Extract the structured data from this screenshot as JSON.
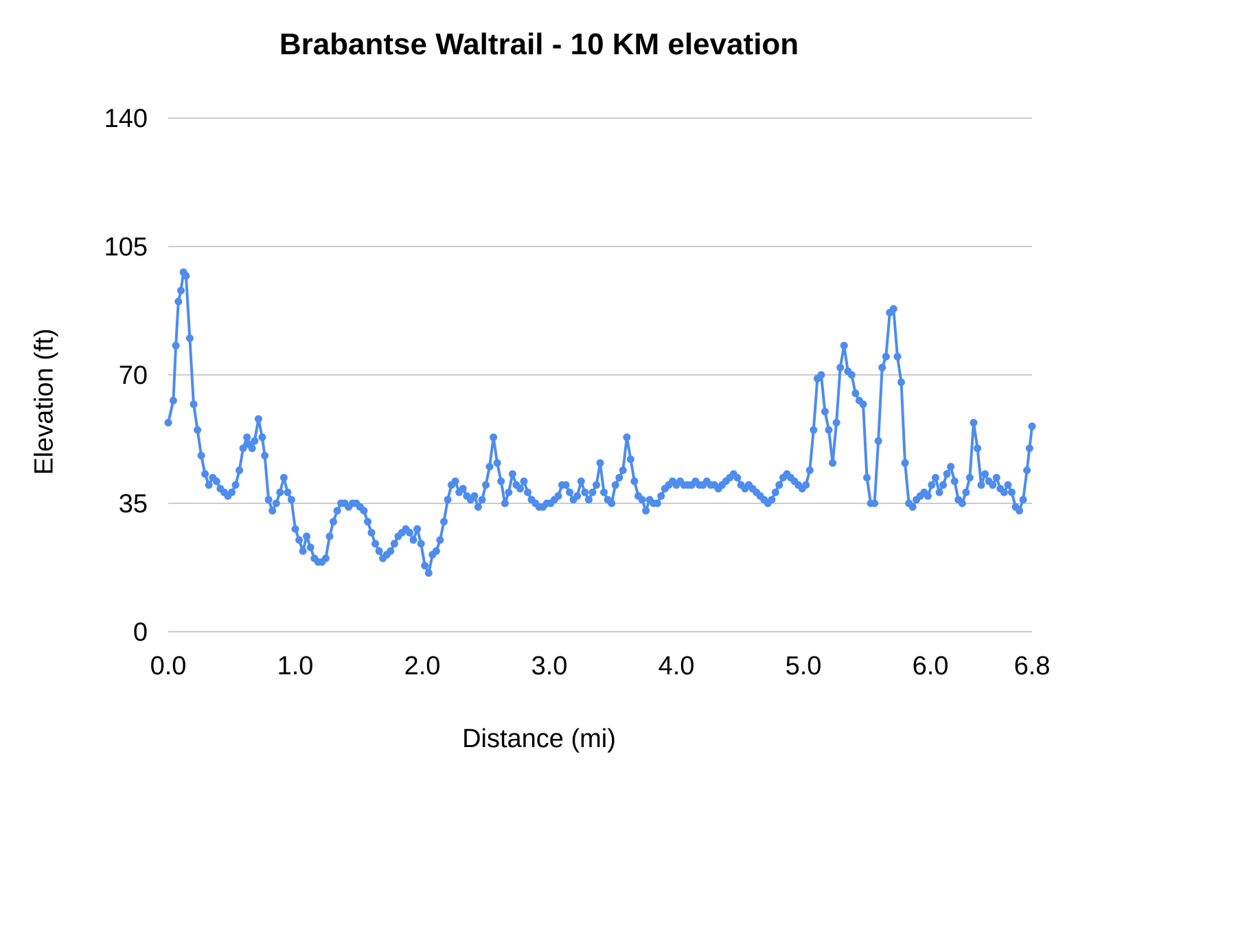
{
  "chart": {
    "title": "Brabantse Waltrail - 10 KM elevation",
    "xlabel": "Distance (mi)",
    "ylabel": "Elevation (ft)"
  },
  "chart_data": {
    "type": "line",
    "title": "Brabantse Waltrail - 10 KM elevation",
    "xlabel": "Distance (mi)",
    "ylabel": "Elevation (ft)",
    "xlim": [
      0,
      6.8
    ],
    "ylim": [
      0,
      140
    ],
    "x_ticks": [
      0,
      1,
      2,
      3,
      4,
      5,
      6,
      6.8
    ],
    "x_tick_labels": [
      "0.0",
      "1.0",
      "2.0",
      "3.0",
      "4.0",
      "5.0",
      "6.0",
      "6.8"
    ],
    "y_ticks": [
      0,
      35,
      70,
      105,
      140
    ],
    "grid": true,
    "legend": "none",
    "line_color": "#4e8ced",
    "grid_color": "#cccccc",
    "text_color": "#000000",
    "marker": "circle",
    "points": [
      [
        0.0,
        57
      ],
      [
        0.04,
        63
      ],
      [
        0.06,
        78
      ],
      [
        0.08,
        90
      ],
      [
        0.1,
        93
      ],
      [
        0.12,
        98
      ],
      [
        0.14,
        97
      ],
      [
        0.17,
        80
      ],
      [
        0.2,
        62
      ],
      [
        0.23,
        55
      ],
      [
        0.26,
        48
      ],
      [
        0.29,
        43
      ],
      [
        0.32,
        40
      ],
      [
        0.35,
        42
      ],
      [
        0.38,
        41
      ],
      [
        0.41,
        39
      ],
      [
        0.44,
        38
      ],
      [
        0.47,
        37
      ],
      [
        0.5,
        38
      ],
      [
        0.53,
        40
      ],
      [
        0.56,
        44
      ],
      [
        0.59,
        50
      ],
      [
        0.62,
        53
      ],
      [
        0.64,
        51
      ],
      [
        0.66,
        50
      ],
      [
        0.68,
        52
      ],
      [
        0.71,
        58
      ],
      [
        0.74,
        53
      ],
      [
        0.76,
        48
      ],
      [
        0.79,
        36
      ],
      [
        0.82,
        33
      ],
      [
        0.85,
        35
      ],
      [
        0.88,
        38
      ],
      [
        0.91,
        42
      ],
      [
        0.94,
        38
      ],
      [
        0.97,
        36
      ],
      [
        1.0,
        28
      ],
      [
        1.03,
        25
      ],
      [
        1.06,
        22
      ],
      [
        1.09,
        26
      ],
      [
        1.12,
        23
      ],
      [
        1.15,
        20
      ],
      [
        1.18,
        19
      ],
      [
        1.21,
        19
      ],
      [
        1.24,
        20
      ],
      [
        1.27,
        26
      ],
      [
        1.3,
        30
      ],
      [
        1.33,
        33
      ],
      [
        1.36,
        35
      ],
      [
        1.39,
        35
      ],
      [
        1.42,
        34
      ],
      [
        1.45,
        35
      ],
      [
        1.48,
        35
      ],
      [
        1.51,
        34
      ],
      [
        1.54,
        33
      ],
      [
        1.57,
        30
      ],
      [
        1.6,
        27
      ],
      [
        1.63,
        24
      ],
      [
        1.66,
        22
      ],
      [
        1.69,
        20
      ],
      [
        1.72,
        21
      ],
      [
        1.75,
        22
      ],
      [
        1.78,
        24
      ],
      [
        1.81,
        26
      ],
      [
        1.84,
        27
      ],
      [
        1.87,
        28
      ],
      [
        1.9,
        27
      ],
      [
        1.93,
        25
      ],
      [
        1.96,
        28
      ],
      [
        1.99,
        24
      ],
      [
        2.02,
        18
      ],
      [
        2.05,
        16
      ],
      [
        2.08,
        21
      ],
      [
        2.11,
        22
      ],
      [
        2.14,
        25
      ],
      [
        2.17,
        30
      ],
      [
        2.2,
        36
      ],
      [
        2.23,
        40
      ],
      [
        2.26,
        41
      ],
      [
        2.29,
        38
      ],
      [
        2.32,
        39
      ],
      [
        2.35,
        37
      ],
      [
        2.38,
        36
      ],
      [
        2.41,
        37
      ],
      [
        2.44,
        34
      ],
      [
        2.47,
        36
      ],
      [
        2.5,
        40
      ],
      [
        2.53,
        45
      ],
      [
        2.56,
        53
      ],
      [
        2.59,
        46
      ],
      [
        2.62,
        41
      ],
      [
        2.65,
        35
      ],
      [
        2.68,
        38
      ],
      [
        2.71,
        43
      ],
      [
        2.74,
        40
      ],
      [
        2.77,
        39
      ],
      [
        2.8,
        41
      ],
      [
        2.83,
        38
      ],
      [
        2.86,
        36
      ],
      [
        2.89,
        35
      ],
      [
        2.92,
        34
      ],
      [
        2.95,
        34
      ],
      [
        2.98,
        35
      ],
      [
        3.01,
        35
      ],
      [
        3.04,
        36
      ],
      [
        3.07,
        37
      ],
      [
        3.1,
        40
      ],
      [
        3.13,
        40
      ],
      [
        3.16,
        38
      ],
      [
        3.19,
        36
      ],
      [
        3.22,
        37
      ],
      [
        3.25,
        41
      ],
      [
        3.28,
        38
      ],
      [
        3.31,
        36
      ],
      [
        3.34,
        38
      ],
      [
        3.37,
        40
      ],
      [
        3.4,
        46
      ],
      [
        3.43,
        38
      ],
      [
        3.46,
        36
      ],
      [
        3.49,
        35
      ],
      [
        3.52,
        40
      ],
      [
        3.55,
        42
      ],
      [
        3.58,
        44
      ],
      [
        3.61,
        53
      ],
      [
        3.64,
        47
      ],
      [
        3.67,
        41
      ],
      [
        3.7,
        37
      ],
      [
        3.73,
        36
      ],
      [
        3.76,
        33
      ],
      [
        3.79,
        36
      ],
      [
        3.82,
        35
      ],
      [
        3.85,
        35
      ],
      [
        3.88,
        37
      ],
      [
        3.91,
        39
      ],
      [
        3.94,
        40
      ],
      [
        3.97,
        41
      ],
      [
        4.0,
        40
      ],
      [
        4.03,
        41
      ],
      [
        4.06,
        40
      ],
      [
        4.09,
        40
      ],
      [
        4.12,
        40
      ],
      [
        4.15,
        41
      ],
      [
        4.18,
        40
      ],
      [
        4.21,
        40
      ],
      [
        4.24,
        41
      ],
      [
        4.27,
        40
      ],
      [
        4.3,
        40
      ],
      [
        4.33,
        39
      ],
      [
        4.36,
        40
      ],
      [
        4.39,
        41
      ],
      [
        4.42,
        42
      ],
      [
        4.45,
        43
      ],
      [
        4.48,
        42
      ],
      [
        4.51,
        40
      ],
      [
        4.54,
        39
      ],
      [
        4.57,
        40
      ],
      [
        4.6,
        39
      ],
      [
        4.63,
        38
      ],
      [
        4.66,
        37
      ],
      [
        4.69,
        36
      ],
      [
        4.72,
        35
      ],
      [
        4.75,
        36
      ],
      [
        4.78,
        38
      ],
      [
        4.81,
        40
      ],
      [
        4.84,
        42
      ],
      [
        4.87,
        43
      ],
      [
        4.9,
        42
      ],
      [
        4.93,
        41
      ],
      [
        4.96,
        40
      ],
      [
        4.99,
        39
      ],
      [
        5.02,
        40
      ],
      [
        5.05,
        44
      ],
      [
        5.08,
        55
      ],
      [
        5.11,
        69
      ],
      [
        5.14,
        70
      ],
      [
        5.17,
        60
      ],
      [
        5.2,
        55
      ],
      [
        5.23,
        46
      ],
      [
        5.26,
        57
      ],
      [
        5.29,
        72
      ],
      [
        5.32,
        78
      ],
      [
        5.35,
        71
      ],
      [
        5.38,
        70
      ],
      [
        5.41,
        65
      ],
      [
        5.44,
        63
      ],
      [
        5.47,
        62
      ],
      [
        5.5,
        42
      ],
      [
        5.53,
        35
      ],
      [
        5.56,
        35
      ],
      [
        5.59,
        52
      ],
      [
        5.62,
        72
      ],
      [
        5.65,
        75
      ],
      [
        5.68,
        87
      ],
      [
        5.71,
        88
      ],
      [
        5.74,
        75
      ],
      [
        5.77,
        68
      ],
      [
        5.8,
        46
      ],
      [
        5.83,
        35
      ],
      [
        5.86,
        34
      ],
      [
        5.89,
        36
      ],
      [
        5.92,
        37
      ],
      [
        5.95,
        38
      ],
      [
        5.98,
        37
      ],
      [
        6.01,
        40
      ],
      [
        6.04,
        42
      ],
      [
        6.07,
        38
      ],
      [
        6.1,
        40
      ],
      [
        6.13,
        43
      ],
      [
        6.16,
        45
      ],
      [
        6.19,
        41
      ],
      [
        6.22,
        36
      ],
      [
        6.25,
        35
      ],
      [
        6.28,
        38
      ],
      [
        6.31,
        42
      ],
      [
        6.34,
        57
      ],
      [
        6.37,
        50
      ],
      [
        6.4,
        40
      ],
      [
        6.43,
        43
      ],
      [
        6.46,
        41
      ],
      [
        6.49,
        40
      ],
      [
        6.52,
        42
      ],
      [
        6.55,
        39
      ],
      [
        6.58,
        38
      ],
      [
        6.61,
        40
      ],
      [
        6.64,
        38
      ],
      [
        6.67,
        34
      ],
      [
        6.7,
        33
      ],
      [
        6.73,
        36
      ],
      [
        6.76,
        44
      ],
      [
        6.78,
        50
      ],
      [
        6.8,
        56
      ]
    ]
  }
}
